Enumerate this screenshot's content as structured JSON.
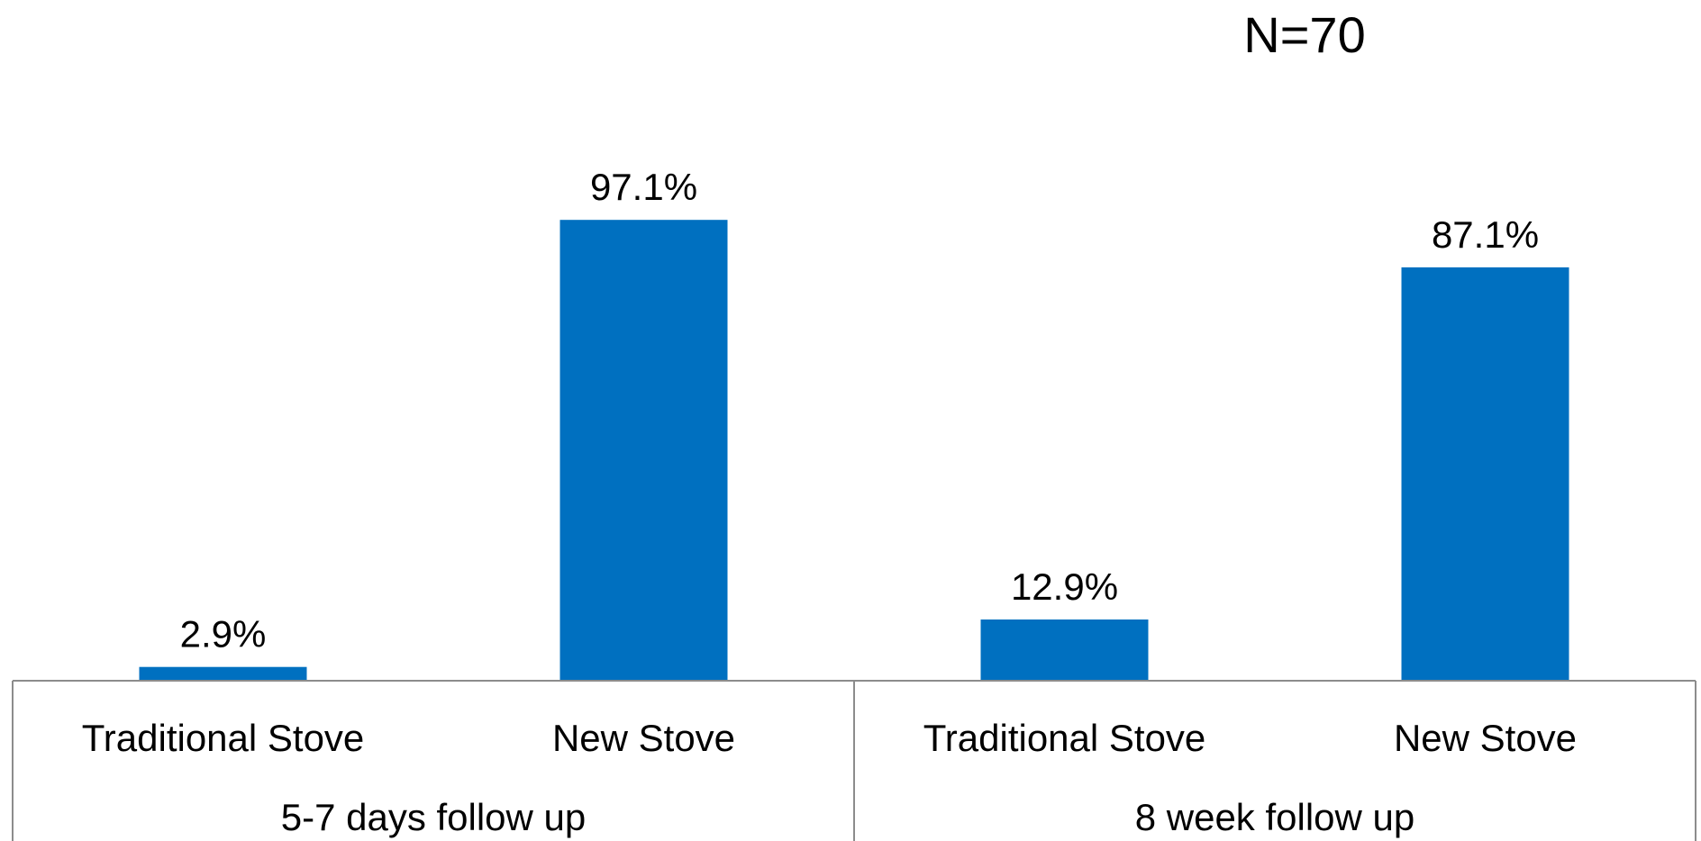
{
  "chart_data": {
    "type": "bar",
    "annotation": "N=70",
    "groups": [
      "5-7 days follow up",
      "8 week follow up"
    ],
    "categories": [
      "Traditional Stove",
      "New Stove",
      "Traditional Stove",
      "New Stove"
    ],
    "values": [
      2.9,
      97.1,
      12.9,
      87.1
    ],
    "value_labels": [
      "2.9%",
      "97.1%",
      "12.9%",
      "87.1%"
    ],
    "unit": "%",
    "ylim": [
      0,
      100
    ],
    "grid": false,
    "legend": "none",
    "colors": {
      "bar": "#0070c0",
      "axis": "#8c8c8c",
      "text": "#000000"
    }
  }
}
